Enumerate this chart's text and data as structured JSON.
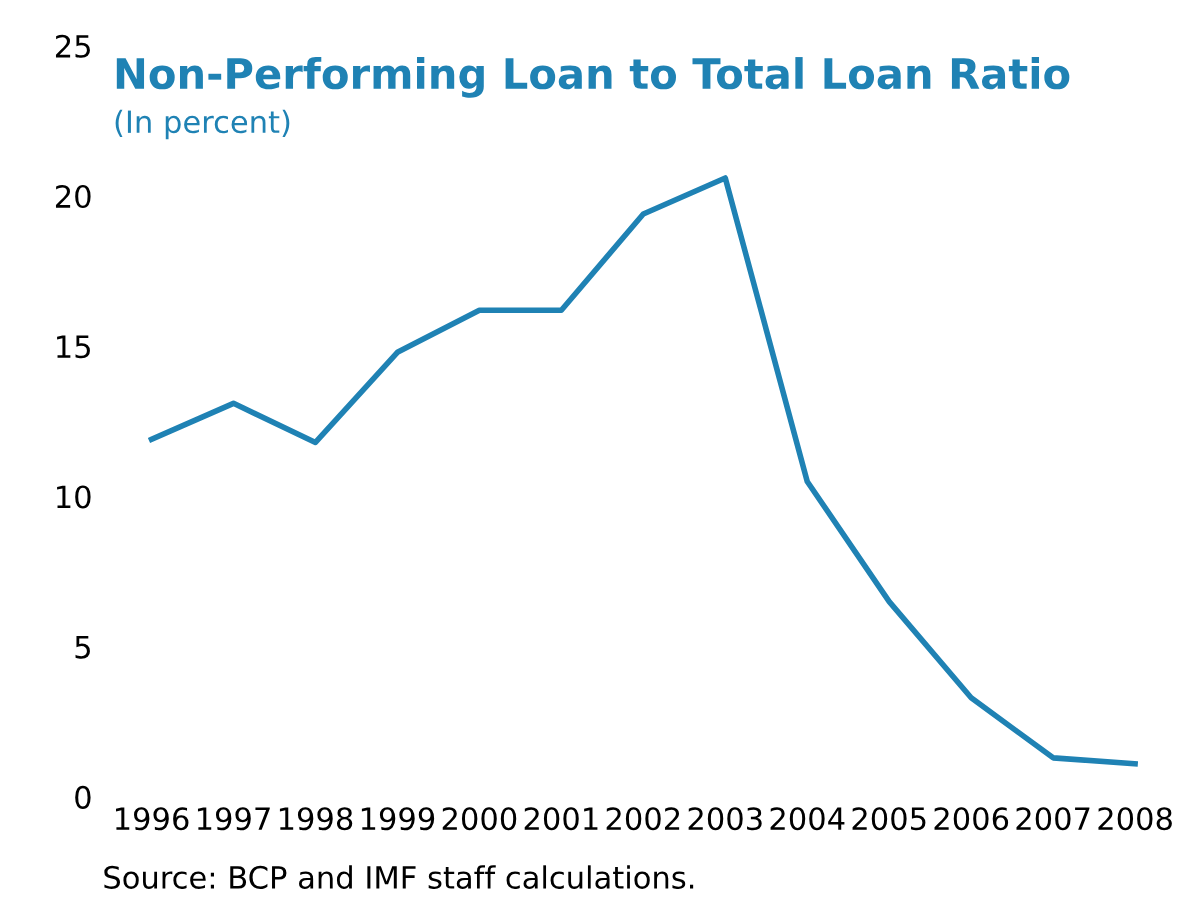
{
  "chart_data": {
    "type": "line",
    "title": "Non-Performing Loan to Total Loan Ratio",
    "subtitle": "(In percent)",
    "categories": [
      "1996",
      "1997",
      "1998",
      "1999",
      "2000",
      "2001",
      "2002",
      "2003",
      "2004",
      "2005",
      "2006",
      "2007",
      "2008"
    ],
    "series": [
      {
        "color": "#1f82b4",
        "values": [
          11.9,
          13.1,
          11.8,
          14.8,
          16.2,
          16.2,
          19.4,
          20.6,
          10.5,
          6.5,
          3.3,
          1.3,
          1.1
        ]
      }
    ],
    "ylim": [
      0,
      25
    ],
    "yticks": [
      0,
      5,
      10,
      15,
      20,
      25
    ],
    "grid": false,
    "legend": false,
    "marker": "none",
    "line_style": "solid",
    "annotations": [
      "Source: BCP and IMF staff calculations."
    ]
  }
}
